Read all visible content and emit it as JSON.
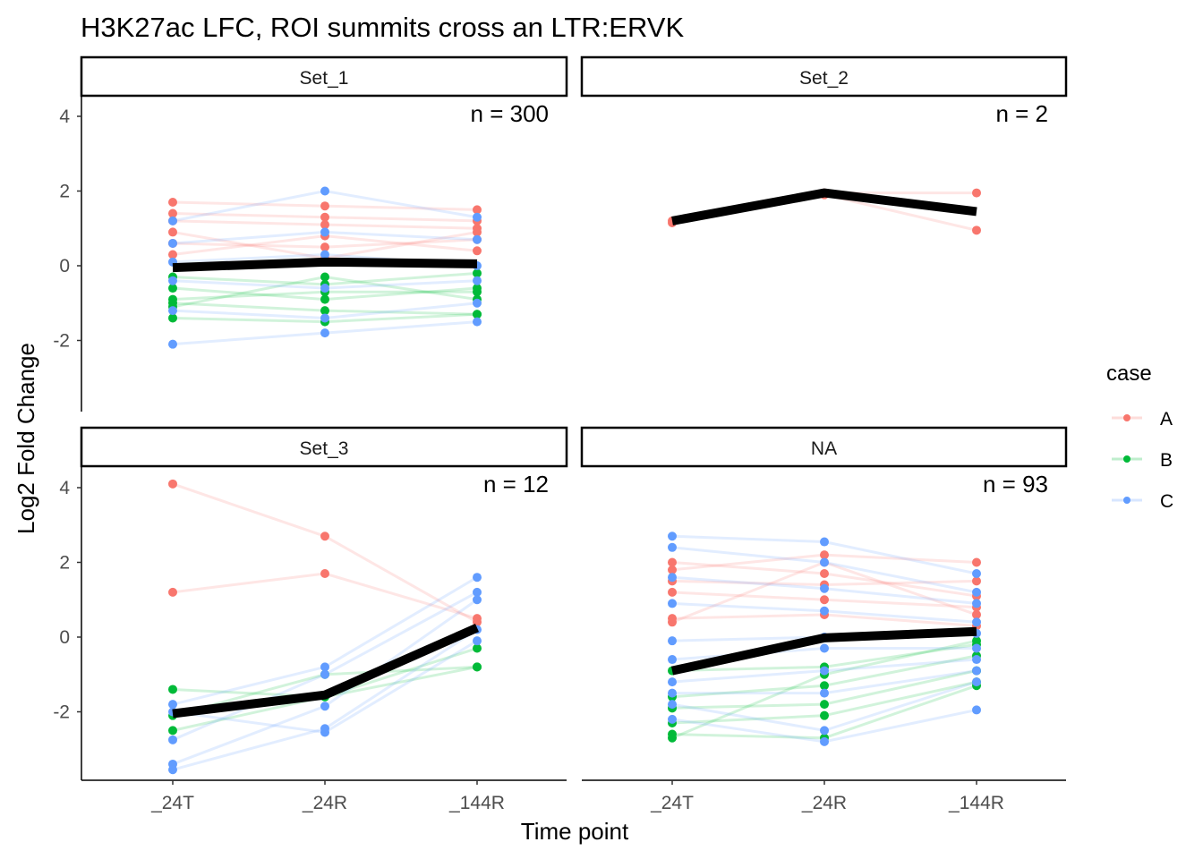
{
  "chart_data": {
    "type": "line",
    "title": "H3K27ac LFC, ROI summits cross an LTR:ERVK",
    "xlabel": "Time point",
    "ylabel": "Log2 Fold Change",
    "categories": [
      "_24T",
      "_24R",
      "_144R"
    ],
    "y_ticks": [
      -2,
      0,
      2,
      4
    ],
    "ylim": [
      -3.9,
      4.3
    ],
    "legend": {
      "title": "case",
      "placement": "right",
      "entries": [
        {
          "name": "A",
          "color": "#F8766D"
        },
        {
          "name": "B",
          "color": "#00BA38"
        },
        {
          "name": "C",
          "color": "#619CFF"
        }
      ]
    },
    "mean_line_color": "#000000",
    "panels": [
      {
        "strip": "Set_1",
        "n_label": "n = 300",
        "mean": [
          -0.05,
          0.1,
          0.05
        ],
        "points": {
          "A": [
            [
              1.7,
              1.2,
              0.6,
              0.3,
              1.4,
              0.9
            ],
            [
              1.6,
              1.1,
              0.5,
              0.8,
              1.3,
              0.2
            ],
            [
              1.5,
              1.0,
              0.7,
              0.4,
              1.2,
              0.9
            ]
          ],
          "B": [
            [
              -0.3,
              -0.9,
              -1.0,
              -1.4,
              -0.6,
              -1.1
            ],
            [
              -0.5,
              -0.7,
              -1.2,
              -1.5,
              -0.9,
              -0.3
            ],
            [
              -0.2,
              -0.7,
              -1.3,
              -1.3,
              -0.6,
              -0.9
            ]
          ],
          "C": [
            [
              1.2,
              0.6,
              0.1,
              -0.4,
              -1.2,
              -2.1
            ],
            [
              2.0,
              0.9,
              0.3,
              -0.6,
              -1.4,
              -1.8
            ],
            [
              1.3,
              0.7,
              0.0,
              -0.4,
              -1.0,
              -1.5
            ]
          ]
        }
      },
      {
        "strip": "Set_2",
        "n_label": "n = 2",
        "mean": [
          1.2,
          1.95,
          1.45
        ],
        "points": {
          "A": [
            [
              1.15,
              1.2
            ],
            [
              1.95,
              1.9
            ],
            [
              1.95,
              0.95
            ]
          ],
          "B": [
            [],
            [],
            []
          ],
          "C": [
            [],
            [],
            []
          ]
        }
      },
      {
        "strip": "Set_3",
        "n_label": "n = 12",
        "mean": [
          -2.05,
          -1.55,
          0.25
        ],
        "points": {
          "A": [
            [
              4.1,
              1.2
            ],
            [
              2.7,
              1.7
            ],
            [
              0.4,
              0.5
            ]
          ],
          "B": [
            [
              -1.4,
              -2.1,
              -2.5
            ],
            [
              -1.6,
              -1.0,
              -1.6
            ],
            [
              -0.8,
              -0.8,
              -0.3
            ]
          ],
          "C": [
            [
              -1.8,
              -2.75,
              -3.4,
              -3.55,
              -2.0
            ],
            [
              -0.8,
              -1.0,
              -1.85,
              -2.45,
              -2.55
            ],
            [
              1.6,
              1.2,
              1.0,
              0.2,
              -0.1
            ]
          ]
        }
      },
      {
        "strip": "NA",
        "n_label": "n = 93",
        "mean": [
          -0.9,
          -0.02,
          0.15
        ],
        "points": {
          "A": [
            [
              1.8,
              1.5,
              1.2,
              0.5,
              0.4,
              2.0
            ],
            [
              2.2,
              1.4,
              1.0,
              0.6,
              2.0,
              1.7
            ],
            [
              2.0,
              1.5,
              0.8,
              0.3,
              0.6,
              1.1
            ]
          ],
          "B": [
            [
              -0.9,
              -1.6,
              -1.9,
              -2.3,
              -2.6,
              -2.7
            ],
            [
              -0.8,
              -1.3,
              -1.8,
              -2.1,
              -2.7,
              -1.0
            ],
            [
              -0.2,
              -0.5,
              -0.9,
              -1.2,
              -1.3,
              -0.1
            ]
          ],
          "C": [
            [
              2.7,
              2.4,
              1.6,
              0.9,
              -0.1,
              -0.6,
              -1.2,
              -1.5,
              -1.8,
              -2.2
            ],
            [
              2.55,
              2.0,
              1.3,
              0.7,
              0.0,
              -0.3,
              -0.9,
              -1.5,
              -2.5,
              -2.8
            ],
            [
              1.7,
              1.2,
              0.9,
              0.4,
              0.1,
              -0.3,
              -0.6,
              -0.9,
              -1.2,
              -1.95
            ]
          ]
        }
      }
    ]
  }
}
